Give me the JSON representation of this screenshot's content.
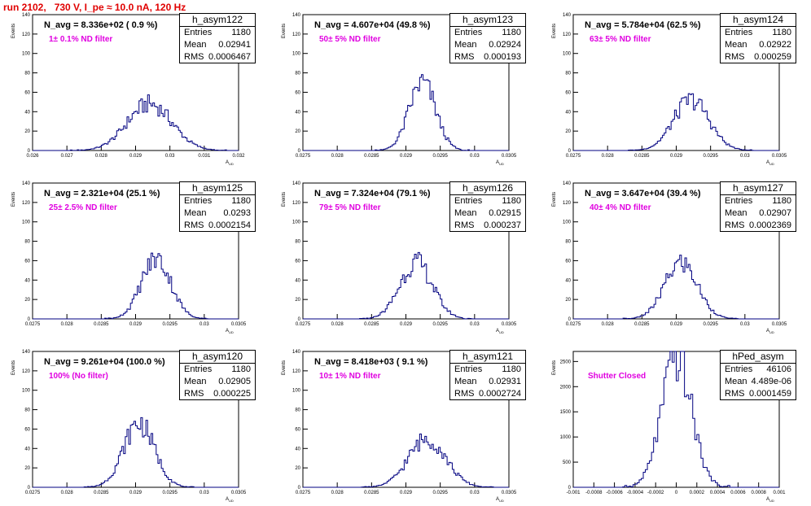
{
  "run_title": "run 2102,   730 V, I_pe ≈ 10.0 nA, 120 Hz",
  "stat_labels": {
    "entries": "Entries",
    "mean": "Mean",
    "rms": "RMS"
  },
  "axis": {
    "ylabel": "Events",
    "xlabel": "A",
    "xlabel_sub": "UD"
  },
  "colors": {
    "histogram": "#000080",
    "title": "#e00000",
    "annotation": "#e000e0"
  },
  "chart_data": [
    {
      "type": "histogram",
      "name": "h_asym122",
      "navg": "N_avg = 8.336e+02 ( 0.9 %)",
      "filter_label": "1± 0.1% ND filter",
      "entries": "1180",
      "mean": "0.02941",
      "rms": "0.0006467",
      "xlim": [
        0.026,
        0.032
      ],
      "ylim": [
        0,
        140
      ],
      "xticks": [
        "0.026",
        "0.027",
        "0.028",
        "0.029",
        "0.03",
        "0.031",
        "0.032"
      ],
      "yticks": [
        "0",
        "20",
        "40",
        "60",
        "80",
        "100",
        "120",
        "140"
      ],
      "peak_x": 0.02941,
      "sigma": 0.00065,
      "peak_y": 48
    },
    {
      "type": "histogram",
      "name": "h_asym123",
      "navg": "N_avg = 4.607e+04 (49.8 %)",
      "filter_label": "50± 5% ND filter",
      "entries": "1180",
      "mean": "0.02924",
      "rms": "0.000193",
      "xlim": [
        0.0275,
        0.0305
      ],
      "ylim": [
        0,
        140
      ],
      "xticks": [
        "0.0275",
        "0.028",
        "0.0285",
        "0.029",
        "0.0295",
        "0.03",
        "0.0305"
      ],
      "yticks": [
        "0",
        "20",
        "40",
        "60",
        "80",
        "100",
        "120",
        "140"
      ],
      "peak_x": 0.02924,
      "sigma": 0.000193,
      "peak_y": 70
    },
    {
      "type": "histogram",
      "name": "h_asym124",
      "navg": "N_avg = 5.784e+04 (62.5 %)",
      "filter_label": "63± 5% ND filter",
      "entries": "1180",
      "mean": "0.02922",
      "rms": "0.000259",
      "xlim": [
        0.0275,
        0.0305
      ],
      "ylim": [
        0,
        140
      ],
      "xticks": [
        "0.0275",
        "0.028",
        "0.0285",
        "0.029",
        "0.0295",
        "0.03",
        "0.0305"
      ],
      "yticks": [
        "0",
        "20",
        "40",
        "60",
        "80",
        "100",
        "120",
        "140"
      ],
      "peak_x": 0.02922,
      "sigma": 0.000259,
      "peak_y": 52
    },
    {
      "type": "histogram",
      "name": "h_asym125",
      "navg": "N_avg = 2.321e+04 (25.1 %)",
      "filter_label": "25± 2.5% ND filter",
      "entries": "1180",
      "mean": "0.0293",
      "rms": "0.0002154",
      "xlim": [
        0.0275,
        0.0305
      ],
      "ylim": [
        0,
        140
      ],
      "xticks": [
        "0.0275",
        "0.028",
        "0.0285",
        "0.029",
        "0.0295",
        "0.03",
        "0.0305"
      ],
      "yticks": [
        "0",
        "20",
        "40",
        "60",
        "80",
        "100",
        "120",
        "140"
      ],
      "peak_x": 0.0293,
      "sigma": 0.000215,
      "peak_y": 62
    },
    {
      "type": "histogram",
      "name": "h_asym126",
      "navg": "N_avg = 7.324e+04 (79.1 %)",
      "filter_label": "79± 5% ND filter",
      "entries": "1180",
      "mean": "0.02915",
      "rms": "0.000237",
      "xlim": [
        0.0275,
        0.0305
      ],
      "ylim": [
        0,
        140
      ],
      "xticks": [
        "0.0275",
        "0.028",
        "0.0285",
        "0.029",
        "0.0295",
        "0.03",
        "0.0305"
      ],
      "yticks": [
        "0",
        "20",
        "40",
        "60",
        "80",
        "100",
        "120",
        "140"
      ],
      "peak_x": 0.02915,
      "sigma": 0.000237,
      "peak_y": 58
    },
    {
      "type": "histogram",
      "name": "h_asym127",
      "navg": "N_avg = 3.647e+04 (39.4 %)",
      "filter_label": "40± 4% ND filter",
      "entries": "1180",
      "mean": "0.02907",
      "rms": "0.0002369",
      "xlim": [
        0.0275,
        0.0305
      ],
      "ylim": [
        0,
        140
      ],
      "xticks": [
        "0.0275",
        "0.028",
        "0.0285",
        "0.029",
        "0.0295",
        "0.03",
        "0.0305"
      ],
      "yticks": [
        "0",
        "20",
        "40",
        "60",
        "80",
        "100",
        "120",
        "140"
      ],
      "peak_x": 0.02907,
      "sigma": 0.000237,
      "peak_y": 58
    },
    {
      "type": "histogram",
      "name": "h_asym120",
      "navg": "N_avg = 9.261e+04 (100.0 %)",
      "filter_label": "100% (No filter)",
      "entries": "1180",
      "mean": "0.02905",
      "rms": "0.000225",
      "xlim": [
        0.0275,
        0.0305
      ],
      "ylim": [
        0,
        140
      ],
      "xticks": [
        "0.0275",
        "0.028",
        "0.0285",
        "0.029",
        "0.0295",
        "0.03",
        "0.0305"
      ],
      "yticks": [
        "0",
        "20",
        "40",
        "60",
        "80",
        "100",
        "120",
        "140"
      ],
      "peak_x": 0.02905,
      "sigma": 0.000225,
      "peak_y": 66
    },
    {
      "type": "histogram",
      "name": "h_asym121",
      "navg": "N_avg = 8.418e+03 ( 9.1 %)",
      "filter_label": "10± 1% ND filter",
      "entries": "1180",
      "mean": "0.02931",
      "rms": "0.0002724",
      "xlim": [
        0.0275,
        0.0305
      ],
      "ylim": [
        0,
        140
      ],
      "xticks": [
        "0.0275",
        "0.028",
        "0.0285",
        "0.029",
        "0.0295",
        "0.03",
        "0.0305"
      ],
      "yticks": [
        "0",
        "20",
        "40",
        "60",
        "80",
        "100",
        "120",
        "140"
      ],
      "peak_x": 0.02931,
      "sigma": 0.000272,
      "peak_y": 50
    },
    {
      "type": "histogram",
      "name": "hPed_asym",
      "navg": "",
      "filter_label": "Shutter Closed",
      "entries": "46106",
      "mean": "4.489e-06",
      "rms": "0.0001459",
      "xlim": [
        -0.001,
        0.001
      ],
      "ylim": [
        0,
        2700
      ],
      "xticks": [
        "-0.001",
        "-0.0008",
        "-0.0006",
        "-0.0004",
        "-0.0002",
        "0",
        "0.0002",
        "0.0004",
        "0.0006",
        "0.0008",
        "0.001"
      ],
      "yticks": [
        "0",
        "500",
        "1000",
        "1500",
        "2000",
        "2500"
      ],
      "peak_x": 4.5e-06,
      "sigma": 0.000146,
      "peak_y": 2560
    }
  ]
}
